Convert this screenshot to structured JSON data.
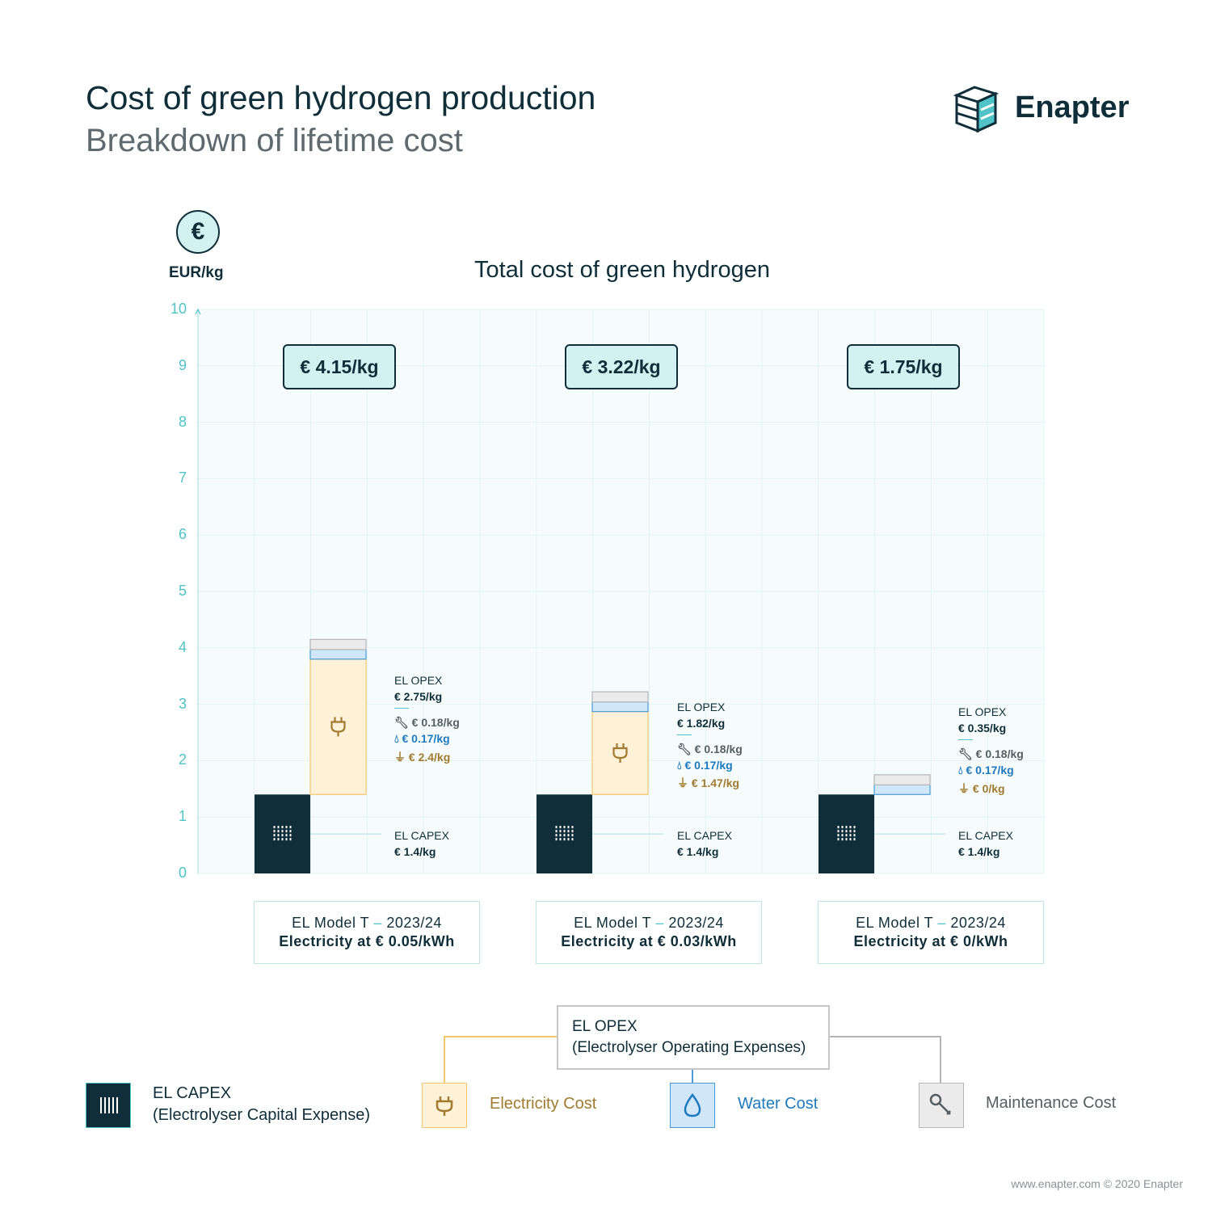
{
  "header": {
    "title": "Cost of green hydrogen production",
    "subtitle": "Breakdown of lifetime cost",
    "brand": "Enapter"
  },
  "axis": {
    "unit": "EUR/kg",
    "ticks": [
      "0",
      "1",
      "2",
      "3",
      "4",
      "5",
      "6",
      "7",
      "8",
      "9",
      "10"
    ]
  },
  "chart_data": {
    "type": "bar",
    "title": "Total cost of green hydrogen",
    "ylabel": "EUR/kg",
    "ylim": [
      0,
      10
    ],
    "grid": true,
    "categories": [
      {
        "line1": "EL Model T",
        "line1b": "2023/24",
        "line2": "Electricity at € 0.05/kWh"
      },
      {
        "line1": "EL Model T",
        "line1b": "2023/24",
        "line2": "Electricity at € 0.03/kWh"
      },
      {
        "line1": "EL Model T",
        "line1b": "2023/24",
        "line2": "Electricity at € 0/kWh"
      }
    ],
    "series": [
      {
        "name": "EL CAPEX",
        "values": [
          1.4,
          1.4,
          1.4
        ]
      },
      {
        "name": "Electricity Cost",
        "values": [
          2.4,
          1.47,
          0
        ]
      },
      {
        "name": "Water Cost",
        "values": [
          0.17,
          0.17,
          0.17
        ]
      },
      {
        "name": "Maintenance Cost",
        "values": [
          0.18,
          0.18,
          0.18
        ]
      }
    ],
    "totals": [
      "€ 4.15/kg",
      "€ 3.22/kg",
      "€ 1.75/kg"
    ],
    "annotations": [
      {
        "opex_label": "EL OPEX",
        "opex_value": "€ 2.75/kg",
        "maint": "€ 0.18/kg",
        "water": "€ 0.17/kg",
        "elec": "€ 2.4/kg",
        "capex_label": "EL CAPEX",
        "capex_value": "€ 1.4/kg"
      },
      {
        "opex_label": "EL OPEX",
        "opex_value": "€ 1.82/kg",
        "maint": "€ 0.18/kg",
        "water": "€ 0.17/kg",
        "elec": "€ 1.47/kg",
        "capex_label": "EL CAPEX",
        "capex_value": "€ 1.4/kg"
      },
      {
        "opex_label": "EL OPEX",
        "opex_value": "€ 0.35/kg",
        "maint": "€ 0.18/kg",
        "water": "€ 0.17/kg",
        "elec": "€ 0/kg",
        "capex_label": "EL CAPEX",
        "capex_value": "€ 1.4/kg"
      }
    ]
  },
  "colors": {
    "capex": "#0f2e3a",
    "electricity_fill": "#fdf1d7",
    "electricity_stroke": "#f3c86e",
    "water_fill": "#cfe7f8",
    "water_stroke": "#4a9bd8",
    "maintenance_fill": "#ebebeb",
    "maintenance_stroke": "#b5b5b5",
    "accent": "#4fc3c7"
  },
  "legend": {
    "opex_title": "EL OPEX",
    "opex_desc": "(Electrolyser Operating Expenses)",
    "capex_title": "EL CAPEX",
    "capex_desc": "(Electrolyser Capital Expense)",
    "electricity": "Electricity Cost",
    "water": "Water Cost",
    "maintenance": "Maintenance Cost"
  },
  "footer": "www.enapter.com © 2020 Enapter"
}
